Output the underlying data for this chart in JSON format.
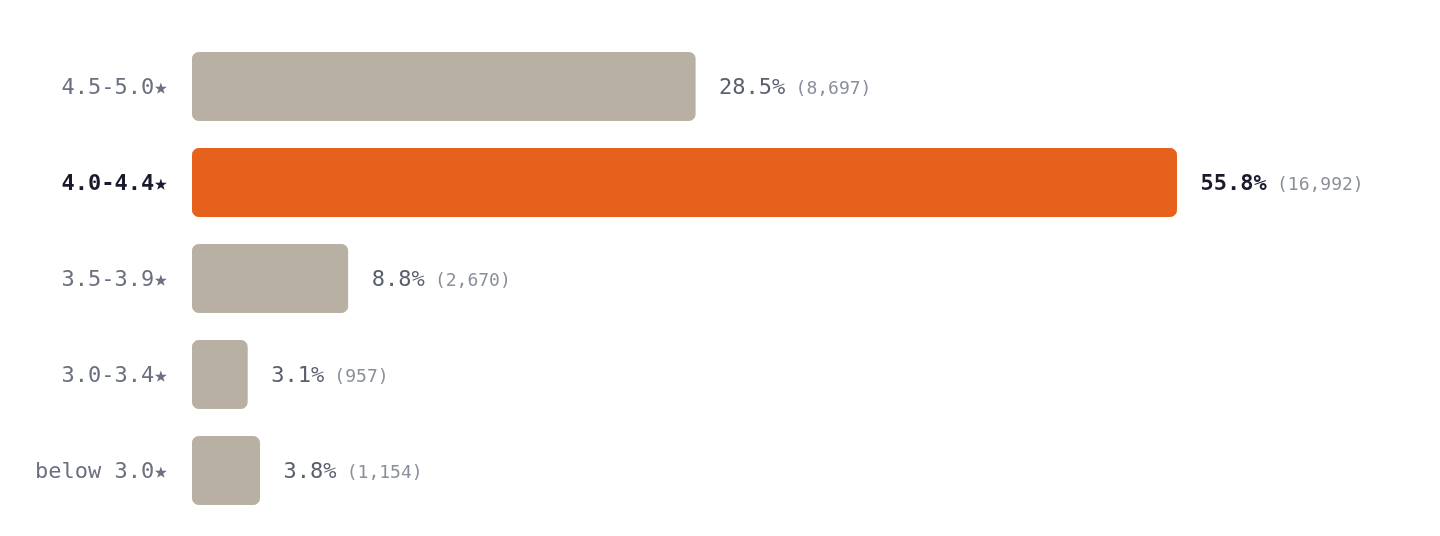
{
  "chart_data": {
    "type": "bar",
    "orientation": "horizontal",
    "categories": [
      "4.5-5.0★",
      "4.0-4.4★",
      "3.5-3.9★",
      "3.0-3.4★",
      "below 3.0★"
    ],
    "values": [
      28.5,
      55.8,
      8.8,
      3.1,
      3.8
    ],
    "colors": [
      "#b8b0a3",
      "#e6621c",
      "#b8b0a3",
      "#b8b0a3",
      "#b8b0a3"
    ],
    "value_labels": [
      "28.5% (8,697)",
      "55.8% (16,992)",
      "8.8% (2,670)",
      "3.1% (957)",
      "3.8% (1,154)"
    ]
  }
}
